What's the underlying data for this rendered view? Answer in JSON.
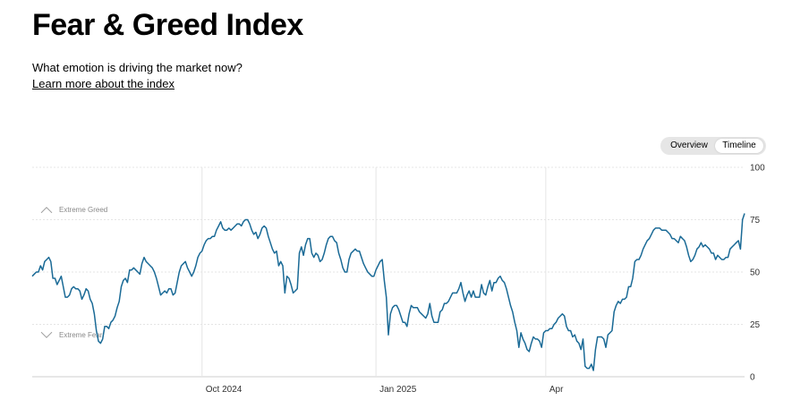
{
  "header": {
    "title": "Fear & Greed Index",
    "subtitle": "What emotion is driving the market now?",
    "learn_link": "Learn more about the index"
  },
  "toggle": {
    "overview": "Overview",
    "timeline": "Timeline",
    "active": "timeline"
  },
  "colors": {
    "line": "#1a6a96",
    "grid": "#e5e5e5",
    "axis": "#cfcfcf",
    "zone_label": "#888888"
  },
  "icons": {
    "greed_zone": "chevron-up-icon",
    "fear_zone": "chevron-down-icon"
  },
  "chart_data": {
    "type": "line",
    "series": [
      {
        "values": [
          48,
          49,
          50,
          50,
          53,
          51,
          55,
          56,
          57,
          55,
          47,
          47,
          44,
          46,
          48,
          43,
          38,
          38,
          39,
          42,
          43,
          42,
          42,
          41,
          37,
          39,
          42,
          41,
          37,
          35,
          30,
          22,
          17,
          16,
          18,
          24,
          24,
          23,
          26,
          27,
          29,
          33,
          36,
          43,
          46,
          47,
          45,
          51,
          51,
          52,
          51,
          50,
          49,
          54,
          57,
          55,
          54,
          53,
          52,
          50,
          47,
          43,
          39,
          40,
          41,
          40,
          42,
          42,
          39,
          40,
          45,
          50,
          53,
          54,
          55,
          52,
          50,
          48,
          50,
          53,
          57,
          59,
          60,
          63,
          65,
          66,
          66,
          67,
          67,
          70,
          72,
          74,
          71,
          70,
          70,
          71,
          70,
          71,
          72,
          73,
          73,
          72,
          74,
          75,
          75,
          73,
          70,
          68,
          69,
          66,
          68,
          71,
          72,
          71,
          67,
          64,
          61,
          59,
          60,
          53,
          55,
          53,
          40,
          48,
          47,
          44,
          40,
          41,
          42,
          59,
          62,
          58,
          63,
          66,
          66,
          59,
          57,
          59,
          58,
          55,
          56,
          59,
          63,
          66,
          67,
          67,
          65,
          64,
          59,
          56,
          52,
          50,
          50,
          56,
          59,
          60,
          61,
          60,
          60,
          57,
          54,
          52,
          50,
          49,
          48,
          48,
          51,
          53,
          55,
          56,
          46,
          38,
          20,
          30,
          33,
          34,
          34,
          32,
          29,
          26,
          26,
          24,
          30,
          34,
          33,
          33,
          33,
          31,
          30,
          29,
          28,
          30,
          35,
          29,
          26,
          26,
          26,
          31,
          32,
          35,
          35,
          36,
          38,
          40,
          40,
          40,
          42,
          45,
          40,
          36,
          39,
          41,
          38,
          41,
          38,
          38,
          38,
          44,
          40,
          39,
          43,
          46,
          41,
          45,
          45,
          47,
          48,
          46,
          45,
          42,
          38,
          34,
          31,
          26,
          22,
          14,
          21,
          18,
          16,
          13,
          12,
          16,
          19,
          18,
          18,
          17,
          14,
          21,
          22,
          22,
          23,
          23,
          25,
          26,
          28,
          29,
          30,
          29,
          24,
          22,
          22,
          19,
          20,
          17,
          16,
          13,
          18,
          5,
          4,
          4,
          6,
          3,
          13,
          19,
          19,
          19,
          18,
          14,
          20,
          21,
          22,
          31,
          34,
          36,
          35,
          37,
          37,
          38,
          43,
          43,
          47,
          55,
          56,
          56,
          58,
          61,
          63,
          65,
          66,
          68,
          70,
          71,
          71,
          71,
          70,
          70,
          70,
          69,
          68,
          66,
          66,
          65,
          64,
          67,
          66,
          65,
          62,
          58,
          55,
          56,
          58,
          61,
          62,
          64,
          62,
          63,
          62,
          61,
          59,
          59,
          56,
          58,
          57,
          56,
          56,
          57,
          57,
          61,
          62,
          63,
          64,
          65,
          61,
          75,
          78
        ]
      }
    ],
    "x_tick_labels": [
      "Oct 2024",
      "Jan 2025",
      "Apr"
    ],
    "x_tick_index": [
      82,
      166,
      248
    ],
    "ylim": [
      0,
      100
    ],
    "yticks": [
      0,
      25,
      50,
      75,
      100
    ],
    "zone_labels": [
      {
        "label": "Extreme Greed",
        "y": 80
      },
      {
        "label": "Extreme Fear",
        "y": 20
      }
    ],
    "grid": true
  }
}
